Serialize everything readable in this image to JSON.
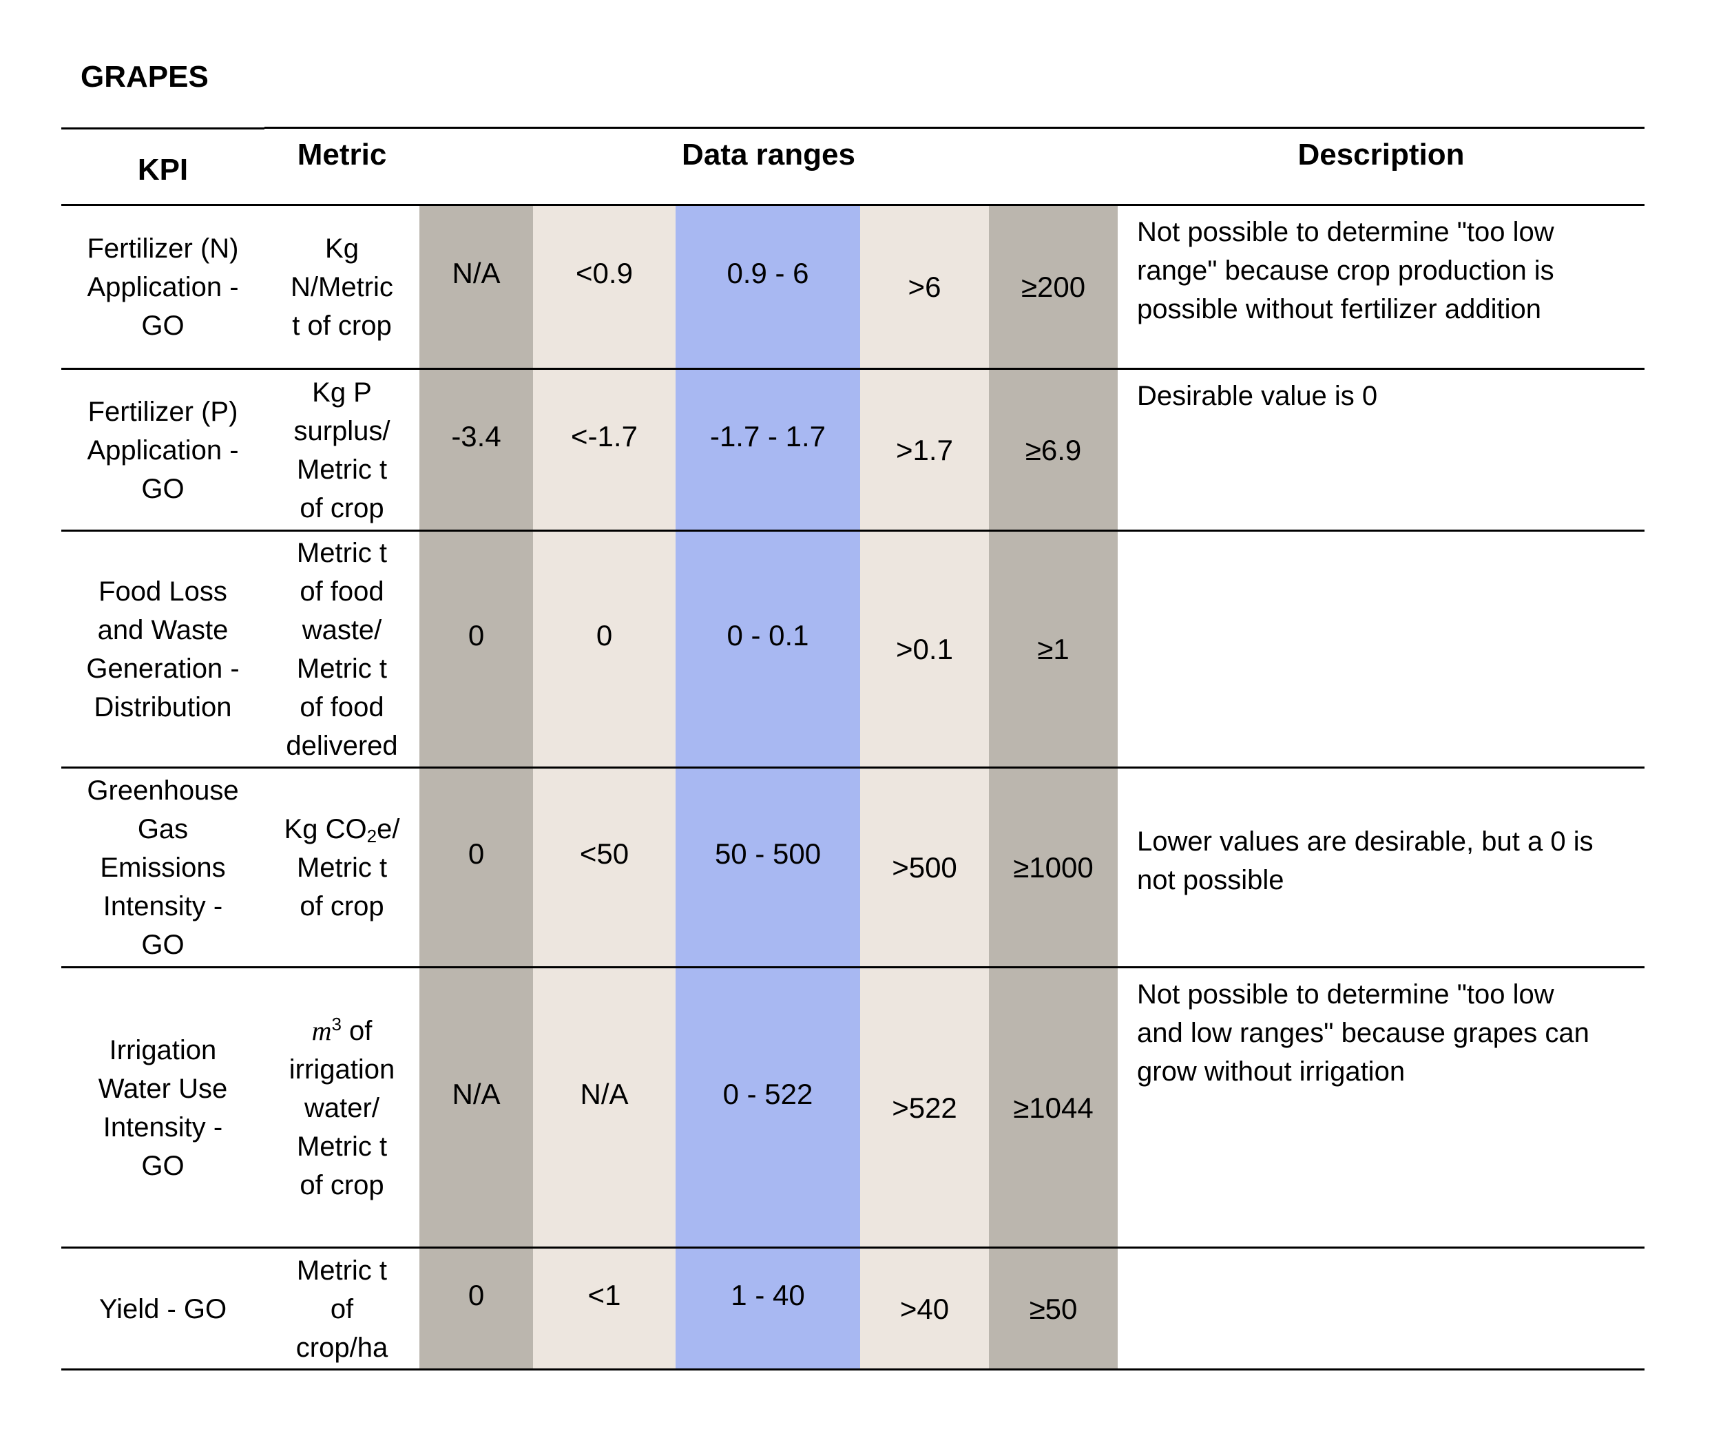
{
  "title": "GRAPES",
  "headers": {
    "kpi": "KPI",
    "metric": "Metric",
    "ranges": "Data ranges",
    "description": "Description"
  },
  "rows": [
    {
      "kpi": [
        "Fertilizer (N)",
        "Application -",
        "GO"
      ],
      "metric": [
        "Kg",
        "N/Metric",
        "t of crop"
      ],
      "ranges": [
        "N/A",
        "<0.9",
        "0.9 - 6",
        ">6",
        "≥200"
      ],
      "description": [
        "Not possible to determine \"too low",
        "range\" because crop production is",
        "possible without fertilizer addition"
      ]
    },
    {
      "kpi": [
        "Fertilizer (P)",
        "Application -",
        "GO"
      ],
      "metric": [
        "Kg P",
        "surplus/",
        "Metric t",
        "of crop"
      ],
      "ranges": [
        "-3.4",
        "<-1.7",
        "-1.7 - 1.7",
        ">1.7",
        "≥6.9"
      ],
      "description": [
        "Desirable value is 0"
      ]
    },
    {
      "kpi": [
        "Food Loss",
        "and Waste",
        "Generation -",
        "Distribution"
      ],
      "metric": [
        "Metric t",
        "of food",
        "waste/",
        "Metric t",
        "of food",
        "delivered"
      ],
      "ranges": [
        "0",
        "0",
        "0 - 0.1",
        ">0.1",
        "≥1"
      ],
      "description": []
    },
    {
      "kpi": [
        "Greenhouse",
        "Gas",
        "Emissions",
        "Intensity -",
        "GO"
      ],
      "metric_rich": {
        "pre": "Kg CO",
        "sub": "2",
        "post": "e/"
      },
      "metric": [
        "Metric t",
        "of crop"
      ],
      "ranges": [
        "0",
        "<50",
        "50 - 500",
        ">500",
        "≥1000"
      ],
      "description": [
        "Lower values are desirable, but a 0 is",
        "not possible"
      ]
    },
    {
      "kpi": [
        "Irrigation",
        "Water Use",
        "Intensity -",
        "GO"
      ],
      "metric_rich": {
        "var": "m",
        "sup": "3",
        "post": " of"
      },
      "metric": [
        "irrigation",
        "water/",
        "Metric t",
        "of crop"
      ],
      "ranges": [
        "N/A",
        "N/A",
        "0 - 522",
        ">522",
        "≥1044"
      ],
      "description": [
        "Not possible to determine \"too low",
        "and low ranges\" because grapes can",
        "grow without irrigation"
      ]
    },
    {
      "kpi": [
        "Yield - GO"
      ],
      "metric": [
        "Metric t",
        "of",
        "crop/ha"
      ],
      "ranges": [
        "0",
        "<1",
        "1 - 40",
        ">40",
        "≥50"
      ],
      "description": []
    }
  ]
}
